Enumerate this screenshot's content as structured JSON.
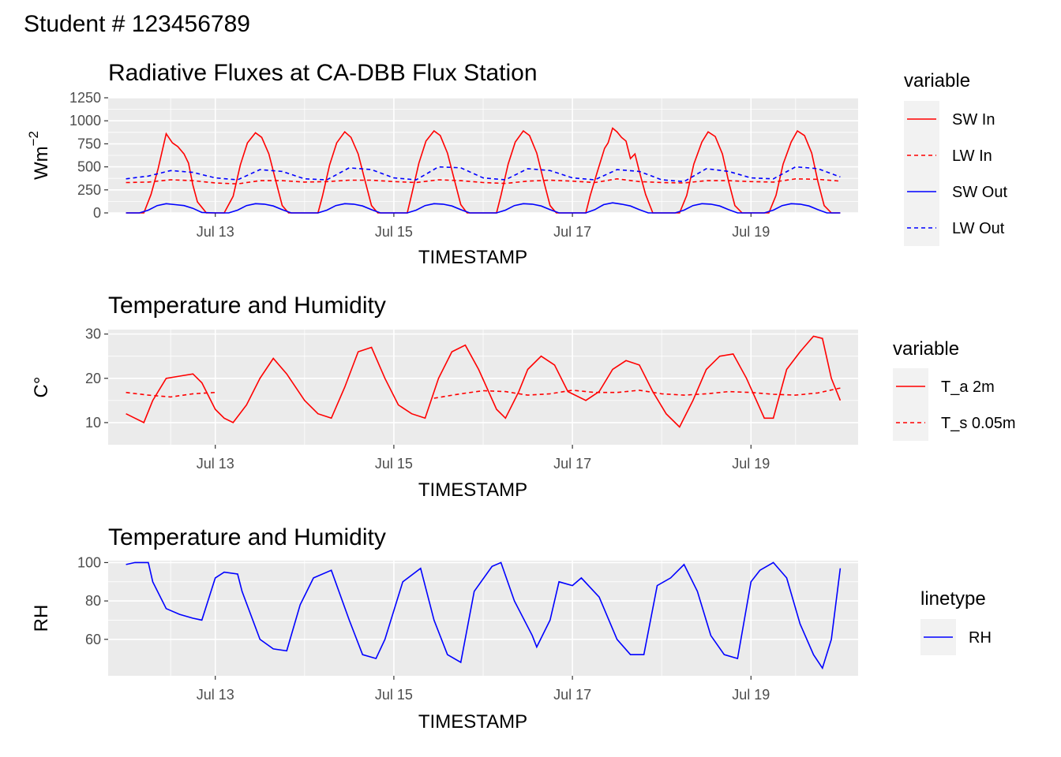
{
  "page": {
    "heading": "Student # 123456789"
  },
  "colors": {
    "red": "#FF0000",
    "blue": "#0000FF",
    "panel_bg": "#EBEBEB",
    "grid": "#FFFFFF",
    "tick_text": "#4D4D4D"
  },
  "chart_data": [
    {
      "type": "line",
      "title": "Radiative Fluxes at CA-DBB Flux Station",
      "xlabel": "TIMESTAMP",
      "ylabel": "Wm",
      "ylabel_sup": "−2",
      "xlim": [
        12.0,
        20.0
      ],
      "ylim": [
        0,
        1250
      ],
      "x_ticks": [
        "Jul 13",
        "Jul 15",
        "Jul 17",
        "Jul 19"
      ],
      "x_tick_values": [
        13,
        15,
        17,
        19
      ],
      "y_ticks": [
        "1250",
        "1000",
        "750",
        "500",
        "250",
        "0"
      ],
      "y_tick_values": [
        1250,
        1000,
        750,
        500,
        250,
        0
      ],
      "legend": {
        "title": "variable",
        "position": "right",
        "entries": [
          {
            "label": "SW In",
            "color": "#FF0000",
            "dash": "solid"
          },
          {
            "label": "LW In",
            "color": "#FF0000",
            "dash": "dashed"
          },
          {
            "label": "SW Out",
            "color": "#0000FF",
            "dash": "solid"
          },
          {
            "label": "LW Out",
            "color": "#0000FF",
            "dash": "dashed"
          }
        ]
      },
      "series": [
        {
          "name": "SW In",
          "color": "#FF0000",
          "dash": "solid",
          "x": [
            12.0,
            12.15,
            12.2,
            12.28,
            12.36,
            12.45,
            12.52,
            12.58,
            12.65,
            12.7,
            12.75,
            12.8,
            12.9,
            13.0,
            13.1,
            13.2,
            13.28,
            13.36,
            13.45,
            13.52,
            13.6,
            13.68,
            13.75,
            13.82,
            13.9,
            14.0,
            14.15,
            14.2,
            14.28,
            14.36,
            14.45,
            14.52,
            14.6,
            14.68,
            14.75,
            14.82,
            14.9,
            15.0,
            15.15,
            15.2,
            15.28,
            15.36,
            15.45,
            15.52,
            15.6,
            15.68,
            15.75,
            15.82,
            15.9,
            16.0,
            16.15,
            16.2,
            16.28,
            16.36,
            16.45,
            16.52,
            16.6,
            16.68,
            16.75,
            16.82,
            16.9,
            17.0,
            17.15,
            17.2,
            17.28,
            17.36,
            17.4,
            17.45,
            17.5,
            17.55,
            17.6,
            17.65,
            17.7,
            17.75,
            17.82,
            17.9,
            18.0,
            18.15,
            18.2,
            18.28,
            18.36,
            18.45,
            18.52,
            18.6,
            18.68,
            18.75,
            18.82,
            18.9,
            19.0,
            19.15,
            19.2,
            19.28,
            19.36,
            19.45,
            19.52,
            19.6,
            19.68,
            19.75,
            19.82,
            19.9,
            20.0
          ],
          "y": [
            0,
            0,
            0,
            200,
            480,
            860,
            760,
            720,
            640,
            540,
            300,
            120,
            0,
            0,
            0,
            180,
            520,
            760,
            870,
            820,
            640,
            340,
            80,
            0,
            0,
            0,
            0,
            180,
            520,
            760,
            880,
            820,
            640,
            340,
            80,
            0,
            0,
            0,
            0,
            200,
            540,
            780,
            890,
            840,
            650,
            350,
            90,
            0,
            0,
            0,
            0,
            190,
            530,
            770,
            890,
            840,
            650,
            340,
            80,
            0,
            0,
            0,
            0,
            190,
            450,
            700,
            760,
            920,
            880,
            820,
            780,
            590,
            640,
            450,
            200,
            0,
            0,
            0,
            0,
            190,
            530,
            770,
            880,
            830,
            640,
            340,
            80,
            0,
            0,
            0,
            0,
            190,
            530,
            770,
            890,
            840,
            650,
            340,
            80,
            0,
            0
          ]
        },
        {
          "name": "LW In",
          "color": "#FF0000",
          "dash": "dashed",
          "x": [
            12.0,
            12.25,
            12.5,
            12.75,
            13.0,
            13.25,
            13.5,
            13.75,
            14.0,
            14.25,
            14.5,
            14.75,
            15.0,
            15.25,
            15.5,
            15.75,
            16.0,
            16.25,
            16.5,
            16.75,
            17.0,
            17.25,
            17.5,
            17.75,
            18.0,
            18.25,
            18.5,
            18.75,
            19.0,
            19.25,
            19.5,
            19.75,
            20.0
          ],
          "y": [
            330,
            335,
            360,
            350,
            325,
            315,
            350,
            350,
            335,
            340,
            355,
            355,
            340,
            330,
            360,
            350,
            330,
            320,
            345,
            355,
            345,
            330,
            370,
            340,
            330,
            325,
            350,
            350,
            340,
            335,
            370,
            365,
            345
          ]
        },
        {
          "name": "SW Out",
          "color": "#0000FF",
          "dash": "solid",
          "x": [
            12.0,
            12.15,
            12.25,
            12.35,
            12.45,
            12.55,
            12.65,
            12.75,
            12.85,
            13.0,
            13.15,
            13.25,
            13.35,
            13.45,
            13.55,
            13.65,
            13.75,
            13.85,
            14.0,
            14.15,
            14.25,
            14.35,
            14.45,
            14.55,
            14.65,
            14.75,
            14.85,
            15.0,
            15.15,
            15.25,
            15.35,
            15.45,
            15.55,
            15.65,
            15.75,
            15.85,
            16.0,
            16.15,
            16.25,
            16.35,
            16.45,
            16.55,
            16.65,
            16.75,
            16.85,
            17.0,
            17.15,
            17.25,
            17.35,
            17.45,
            17.55,
            17.65,
            17.75,
            17.85,
            18.0,
            18.15,
            18.25,
            18.35,
            18.45,
            18.55,
            18.65,
            18.75,
            18.85,
            19.0,
            19.15,
            19.25,
            19.35,
            19.45,
            19.55,
            19.65,
            19.75,
            19.85,
            20.0
          ],
          "y": [
            0,
            0,
            30,
            80,
            100,
            90,
            80,
            50,
            5,
            0,
            0,
            30,
            80,
            100,
            95,
            75,
            35,
            0,
            0,
            0,
            30,
            80,
            100,
            95,
            75,
            35,
            0,
            0,
            0,
            30,
            80,
            100,
            95,
            75,
            35,
            0,
            0,
            0,
            30,
            80,
            100,
            95,
            75,
            35,
            0,
            0,
            0,
            35,
            90,
            110,
            95,
            75,
            35,
            0,
            0,
            0,
            30,
            80,
            100,
            95,
            75,
            35,
            0,
            0,
            0,
            30,
            80,
            100,
            95,
            75,
            35,
            0,
            0
          ]
        },
        {
          "name": "LW Out",
          "color": "#0000FF",
          "dash": "dashed",
          "x": [
            12.0,
            12.25,
            12.5,
            12.75,
            13.0,
            13.25,
            13.5,
            13.75,
            14.0,
            14.25,
            14.5,
            14.75,
            15.0,
            15.25,
            15.5,
            15.75,
            16.0,
            16.25,
            16.5,
            16.75,
            17.0,
            17.25,
            17.5,
            17.75,
            18.0,
            18.25,
            18.5,
            18.75,
            19.0,
            19.25,
            19.5,
            19.75,
            20.0
          ],
          "y": [
            370,
            400,
            460,
            440,
            380,
            360,
            470,
            450,
            370,
            360,
            490,
            470,
            380,
            360,
            500,
            490,
            380,
            360,
            480,
            460,
            380,
            360,
            470,
            450,
            360,
            340,
            480,
            450,
            380,
            370,
            500,
            480,
            390
          ]
        }
      ]
    },
    {
      "type": "line",
      "title": "Temperature and Humidity",
      "xlabel": "TIMESTAMP",
      "ylabel": "C°",
      "xlim": [
        12.0,
        20.0
      ],
      "ylim": [
        5,
        31
      ],
      "x_ticks": [
        "Jul 13",
        "Jul 15",
        "Jul 17",
        "Jul 19"
      ],
      "x_tick_values": [
        13,
        15,
        17,
        19
      ],
      "y_ticks": [
        "30",
        "20",
        "10"
      ],
      "y_tick_values": [
        30,
        20,
        10
      ],
      "legend": {
        "title": "variable",
        "position": "right",
        "entries": [
          {
            "label": "T_a 2m",
            "color": "#FF0000",
            "dash": "solid"
          },
          {
            "label": "T_s 0.05m",
            "color": "#FF0000",
            "dash": "dashed"
          }
        ]
      },
      "series": [
        {
          "name": "T_a 2m",
          "color": "#FF0000",
          "dash": "solid",
          "x": [
            12.0,
            12.1,
            12.2,
            12.3,
            12.45,
            12.6,
            12.75,
            12.85,
            13.0,
            13.1,
            13.2,
            13.35,
            13.5,
            13.65,
            13.8,
            14.0,
            14.15,
            14.3,
            14.45,
            14.6,
            14.75,
            14.9,
            15.05,
            15.2,
            15.35,
            15.5,
            15.65,
            15.8,
            15.95,
            16.15,
            16.25,
            16.4,
            16.5,
            16.65,
            16.8,
            16.95,
            17.15,
            17.3,
            17.45,
            17.6,
            17.75,
            17.9,
            18.05,
            18.2,
            18.35,
            18.5,
            18.65,
            18.8,
            18.95,
            19.15,
            19.25,
            19.4,
            19.55,
            19.7,
            19.8,
            19.9,
            20.0
          ],
          "y": [
            12,
            11,
            10,
            15,
            20,
            20.5,
            21,
            19,
            13,
            11,
            10,
            14,
            20,
            24.5,
            21,
            15,
            12,
            11,
            18,
            26,
            27,
            20,
            14,
            12,
            11,
            20,
            26,
            27.5,
            22,
            13,
            11,
            17,
            22,
            25,
            23,
            17,
            15,
            17,
            22,
            24,
            23,
            17,
            12,
            9,
            15,
            22,
            25,
            25.5,
            20,
            11,
            11,
            22,
            26,
            29.5,
            29,
            20,
            15
          ]
        },
        {
          "name": "T_s 0.05m",
          "color": "#FF0000",
          "dash": "dashed",
          "x": [
            12.0,
            12.25,
            12.5,
            12.75,
            13.0,
            15.45,
            15.75,
            16.0,
            16.25,
            16.5,
            16.75,
            17.0,
            17.25,
            17.5,
            17.75,
            18.0,
            18.25,
            18.5,
            18.75,
            19.0,
            19.25,
            19.5,
            19.75,
            20.0
          ],
          "y": [
            16.8,
            16.2,
            15.8,
            16.5,
            16.8,
            15.5,
            16.5,
            17.2,
            17.0,
            16.2,
            16.5,
            17.3,
            16.8,
            16.8,
            17.3,
            16.5,
            16.2,
            16.5,
            17.0,
            16.8,
            16.4,
            16.2,
            16.7,
            17.8
          ],
          "breaks_after_x": [
            13.0
          ]
        }
      ]
    },
    {
      "type": "line",
      "title": "Temperature and Humidity",
      "xlabel": "TIMESTAMP",
      "ylabel": "RH",
      "xlim": [
        12.0,
        20.0
      ],
      "ylim": [
        41,
        101
      ],
      "x_ticks": [
        "Jul 13",
        "Jul 15",
        "Jul 17",
        "Jul 19"
      ],
      "x_tick_values": [
        13,
        15,
        17,
        19
      ],
      "y_ticks": [
        "100",
        "80",
        "60"
      ],
      "y_tick_values": [
        100,
        80,
        60
      ],
      "legend": {
        "title": "linetype",
        "position": "right",
        "entries": [
          {
            "label": "RH",
            "color": "#0000FF",
            "dash": "solid"
          }
        ]
      },
      "series": [
        {
          "name": "RH",
          "color": "#0000FF",
          "dash": "solid",
          "x": [
            12.0,
            12.1,
            12.25,
            12.3,
            12.45,
            12.6,
            12.75,
            12.85,
            13.0,
            13.1,
            13.25,
            13.3,
            13.5,
            13.65,
            13.8,
            13.95,
            14.1,
            14.3,
            14.5,
            14.65,
            14.8,
            14.9,
            15.1,
            15.3,
            15.45,
            15.6,
            15.75,
            15.9,
            16.1,
            16.2,
            16.35,
            16.55,
            16.6,
            16.75,
            16.85,
            17.0,
            17.1,
            17.3,
            17.5,
            17.65,
            17.8,
            17.95,
            18.1,
            18.25,
            18.4,
            18.55,
            18.7,
            18.85,
            19.0,
            19.1,
            19.25,
            19.4,
            19.55,
            19.7,
            19.8,
            19.9,
            20.0
          ],
          "y": [
            99,
            100,
            100,
            90,
            76,
            73,
            71,
            70,
            92,
            95,
            94,
            85,
            60,
            55,
            54,
            78,
            92,
            96,
            70,
            52,
            50,
            60,
            90,
            97,
            70,
            52,
            48,
            85,
            98,
            100,
            80,
            62,
            56,
            70,
            90,
            88,
            92,
            82,
            60,
            52,
            52,
            88,
            92,
            99,
            85,
            62,
            52,
            50,
            90,
            96,
            100,
            92,
            68,
            52,
            45,
            60,
            97
          ]
        }
      ]
    }
  ]
}
